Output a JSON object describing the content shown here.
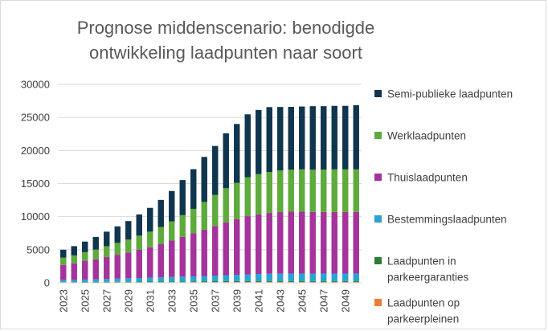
{
  "chart_data": {
    "type": "bar",
    "stacked": true,
    "title_line1": "Prognose middenscenario:  benodigde",
    "title_line2": "ontwikkeling laadpunten naar soort",
    "xlabel": "",
    "ylabel": "",
    "ylim": [
      0,
      30000
    ],
    "yticks": [
      0,
      5000,
      10000,
      15000,
      20000,
      25000,
      30000
    ],
    "ytick_labels": [
      "0",
      "5000",
      "10000",
      "15000",
      "20000",
      "25000",
      "30000"
    ],
    "xtick_labels": [
      "2023",
      "2025",
      "2027",
      "2029",
      "2031",
      "2033",
      "2035",
      "2037",
      "2039",
      "2041",
      "2043",
      "2045",
      "2047",
      "2049"
    ],
    "grid": true,
    "legend_position": "right",
    "categories": [
      "2023",
      "2024",
      "2025",
      "2026",
      "2027",
      "2028",
      "2029",
      "2030",
      "2031",
      "2032",
      "2033",
      "2034",
      "2035",
      "2036",
      "2037",
      "2038",
      "2039",
      "2040",
      "2041",
      "2042",
      "2043",
      "2044",
      "2045",
      "2046",
      "2047",
      "2048",
      "2049",
      "2050"
    ],
    "series": [
      {
        "name": "Laadpunten op parkeerpleinen",
        "color": "#ed7d31",
        "values": [
          40,
          45,
          50,
          55,
          60,
          65,
          70,
          75,
          80,
          85,
          90,
          95,
          100,
          105,
          110,
          115,
          120,
          125,
          130,
          130,
          130,
          130,
          130,
          130,
          130,
          130,
          130,
          130
        ]
      },
      {
        "name": "Laadpunten in parkeergaranties",
        "color": "#2e7d32",
        "values": [
          60,
          65,
          70,
          75,
          80,
          85,
          90,
          95,
          100,
          105,
          110,
          115,
          120,
          125,
          130,
          135,
          140,
          145,
          150,
          150,
          150,
          150,
          150,
          150,
          150,
          150,
          150,
          150
        ]
      },
      {
        "name": "Bestemmingslaadpunten",
        "color": "#29a3d6",
        "values": [
          300,
          330,
          360,
          400,
          440,
          480,
          520,
          560,
          600,
          640,
          680,
          720,
          760,
          800,
          850,
          900,
          950,
          1000,
          1050,
          1080,
          1100,
          1120,
          1120,
          1120,
          1120,
          1120,
          1120,
          1120
        ]
      },
      {
        "name": "Thuislaadpunten",
        "color": "#a4339b",
        "values": [
          2300,
          2500,
          2800,
          3000,
          3300,
          3600,
          3900,
          4250,
          4600,
          5000,
          5500,
          6000,
          6500,
          7000,
          7500,
          8000,
          8400,
          8800,
          9000,
          9200,
          9300,
          9350,
          9350,
          9300,
          9300,
          9300,
          9300,
          9300
        ]
      },
      {
        "name": "Werklaadpunten",
        "color": "#5faa3c",
        "values": [
          1100,
          1200,
          1350,
          1500,
          1650,
          1800,
          1950,
          2150,
          2350,
          2600,
          2900,
          3300,
          3700,
          4200,
          4700,
          5150,
          5500,
          5900,
          6100,
          6200,
          6300,
          6350,
          6400,
          6400,
          6400,
          6450,
          6450,
          6450
        ]
      },
      {
        "name": "Semi-publieke laadpunten",
        "color": "#10354f",
        "values": [
          1200,
          1400,
          1600,
          1900,
          2200,
          2500,
          2800,
          3200,
          3600,
          4100,
          4600,
          5300,
          6000,
          6800,
          7400,
          8300,
          8900,
          9500,
          9700,
          9800,
          9600,
          9500,
          9500,
          9600,
          9600,
          9600,
          9600,
          9700
        ]
      }
    ],
    "legend_order": [
      {
        "index": 5,
        "lines": [
          "Semi-publieke laadpunten"
        ]
      },
      {
        "index": 4,
        "lines": [
          "Werklaadpunten"
        ]
      },
      {
        "index": 3,
        "lines": [
          "Thuislaadpunten"
        ]
      },
      {
        "index": 2,
        "lines": [
          "Bestemmingslaadpunten"
        ]
      },
      {
        "index": 1,
        "lines": [
          "Laadpunten in",
          "parkeergaranties"
        ]
      },
      {
        "index": 0,
        "lines": [
          "Laadpunten op",
          "parkeerpleinen"
        ]
      }
    ]
  }
}
